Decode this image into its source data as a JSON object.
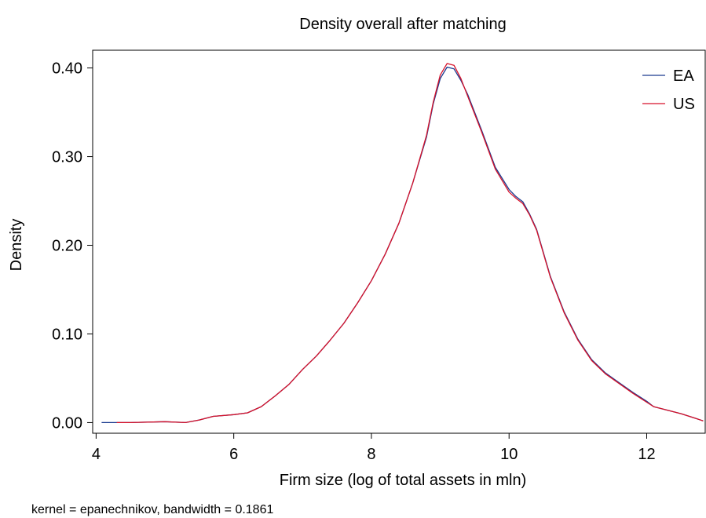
{
  "chart_data": {
    "type": "line",
    "title": "Density overall after matching",
    "xlabel": "Firm size (log of total assets in mln)",
    "ylabel": "Density",
    "note": "kernel = epanechnikov, bandwidth = 0.1861",
    "xlim": [
      3.95,
      12.85
    ],
    "ylim": [
      -0.012,
      0.42
    ],
    "x_ticks": [
      4,
      6,
      8,
      10,
      12
    ],
    "x_tick_labels": [
      "4",
      "6",
      "8",
      "10",
      "12"
    ],
    "y_ticks": [
      0,
      0.1,
      0.2,
      0.3,
      0.4
    ],
    "y_tick_labels": [
      "0.00",
      "0.10",
      "0.20",
      "0.30",
      "0.40"
    ],
    "grid": false,
    "legend_position": "top-right",
    "series": [
      {
        "name": "EA",
        "color": "#1a3a8f",
        "x": [
          4.08,
          4.5,
          5.0,
          5.3,
          5.5,
          5.7,
          6.0,
          6.2,
          6.4,
          6.6,
          6.8,
          7.0,
          7.2,
          7.4,
          7.6,
          7.8,
          8.0,
          8.2,
          8.4,
          8.6,
          8.8,
          8.9,
          9.0,
          9.1,
          9.2,
          9.3,
          9.4,
          9.6,
          9.8,
          10.0,
          10.1,
          10.2,
          10.3,
          10.4,
          10.6,
          10.8,
          11.0,
          11.2,
          11.4,
          11.6,
          11.8,
          12.0,
          12.1,
          12.3,
          12.5,
          12.7,
          12.82
        ],
        "values": [
          0.0,
          0.0,
          0.001,
          0.0,
          0.003,
          0.007,
          0.009,
          0.011,
          0.018,
          0.03,
          0.043,
          0.06,
          0.075,
          0.093,
          0.112,
          0.135,
          0.16,
          0.19,
          0.225,
          0.27,
          0.322,
          0.36,
          0.388,
          0.401,
          0.399,
          0.386,
          0.37,
          0.33,
          0.288,
          0.263,
          0.255,
          0.249,
          0.235,
          0.218,
          0.165,
          0.125,
          0.094,
          0.071,
          0.056,
          0.045,
          0.034,
          0.024,
          0.018,
          0.014,
          0.01,
          0.005,
          0.002
        ]
      },
      {
        "name": "US",
        "color": "#d7122a",
        "x": [
          4.3,
          4.5,
          5.0,
          5.3,
          5.5,
          5.7,
          6.0,
          6.2,
          6.4,
          6.6,
          6.8,
          7.0,
          7.2,
          7.4,
          7.6,
          7.8,
          8.0,
          8.2,
          8.4,
          8.6,
          8.8,
          8.9,
          9.0,
          9.1,
          9.2,
          9.3,
          9.4,
          9.6,
          9.8,
          10.0,
          10.1,
          10.2,
          10.3,
          10.4,
          10.6,
          10.8,
          11.0,
          11.2,
          11.4,
          11.6,
          11.8,
          12.0,
          12.1,
          12.3,
          12.5,
          12.7,
          12.82
        ],
        "values": [
          0.0,
          0.0,
          0.001,
          0.0,
          0.003,
          0.007,
          0.009,
          0.011,
          0.018,
          0.03,
          0.043,
          0.06,
          0.075,
          0.093,
          0.112,
          0.135,
          0.16,
          0.19,
          0.225,
          0.27,
          0.324,
          0.362,
          0.392,
          0.405,
          0.403,
          0.388,
          0.368,
          0.328,
          0.286,
          0.26,
          0.253,
          0.247,
          0.234,
          0.217,
          0.164,
          0.124,
          0.093,
          0.07,
          0.055,
          0.044,
          0.033,
          0.023,
          0.018,
          0.014,
          0.01,
          0.005,
          0.002
        ]
      }
    ]
  }
}
